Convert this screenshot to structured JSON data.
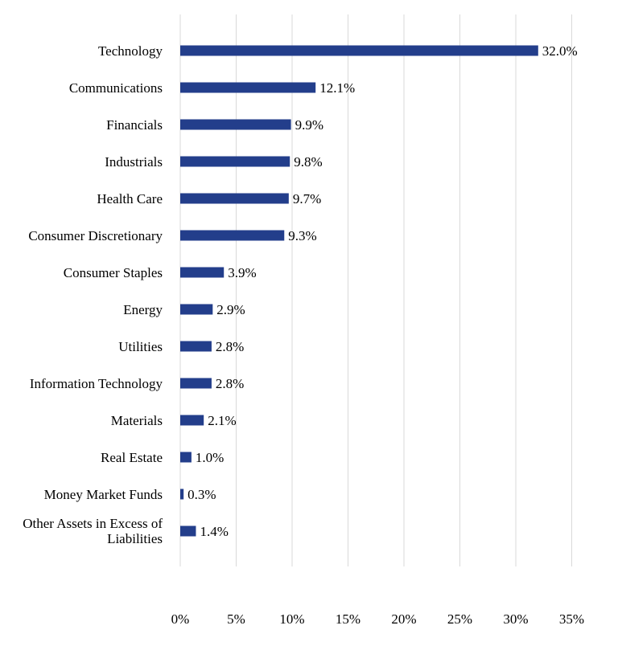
{
  "chart_data": {
    "type": "bar",
    "orientation": "horizontal",
    "title": "",
    "xlabel": "",
    "ylabel": "",
    "categories": [
      "Technology",
      "Communications",
      "Financials",
      "Industrials",
      "Health Care",
      "Consumer Discretionary",
      "Consumer Staples",
      "Energy",
      "Utilities",
      "Information Technology",
      "Materials",
      "Real Estate",
      "Money Market Funds",
      "Other Assets in Excess of Liabilities"
    ],
    "values": [
      32.0,
      12.1,
      9.9,
      9.8,
      9.7,
      9.3,
      3.9,
      2.9,
      2.8,
      2.8,
      2.1,
      1.0,
      0.3,
      1.4
    ],
    "value_labels": [
      "32.0%",
      "12.1%",
      "9.9%",
      "9.8%",
      "9.7%",
      "9.3%",
      "3.9%",
      "2.9%",
      "2.8%",
      "2.8%",
      "2.1%",
      "1.0%",
      "0.3%",
      "1.4%"
    ],
    "xlim": [
      0,
      35
    ],
    "xticks": [
      0,
      5,
      10,
      15,
      20,
      25,
      30,
      35
    ],
    "xtick_labels": [
      "0%",
      "5%",
      "10%",
      "15%",
      "20%",
      "25%",
      "30%",
      "35%"
    ],
    "grid": true,
    "legend": "none",
    "bar_color": "#233e8b"
  }
}
